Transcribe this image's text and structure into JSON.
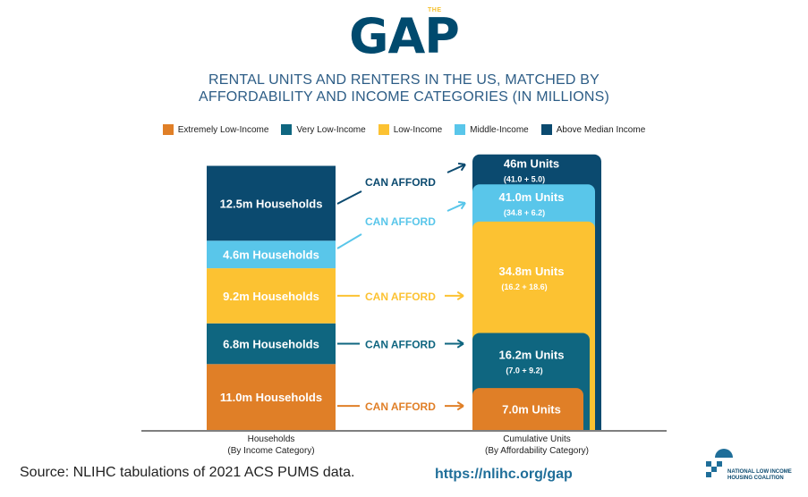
{
  "logo": {
    "main": "GAP",
    "small": "THE"
  },
  "title_lines": [
    "RENTAL UNITS AND RENTERS IN THE US, MATCHED BY",
    "AFFORDABILITY AND INCOME CATEGORIES (IN MILLIONS)"
  ],
  "legend": [
    {
      "label": "Extremely Low-Income",
      "color": "#e07f27"
    },
    {
      "label": "Very Low-Income",
      "color": "#0f6680"
    },
    {
      "label": "Low-Income",
      "color": "#fcc232"
    },
    {
      "label": "Middle-Income",
      "color": "#59c6ea"
    },
    {
      "label": "Above Median Income",
      "color": "#0b4a6f"
    }
  ],
  "chart_data": {
    "type": "bar",
    "categories": [
      "Households\n(By Income Category)",
      "Cumulative Units\n(By Affordability Category)"
    ],
    "households": [
      {
        "category": "Extremely Low-Income",
        "value": 11.0,
        "label": "11.0m Households",
        "color": "#e07f27"
      },
      {
        "category": "Very Low-Income",
        "value": 6.8,
        "label": "6.8m Households",
        "color": "#0f6680"
      },
      {
        "category": "Low-Income",
        "value": 9.2,
        "label": "9.2m Households",
        "color": "#fcc232"
      },
      {
        "category": "Middle-Income",
        "value": 4.6,
        "label": "4.6m Households",
        "color": "#59c6ea"
      },
      {
        "category": "Above Median Income",
        "value": 12.5,
        "label": "12.5m Households",
        "color": "#0b4a6f"
      }
    ],
    "cumulative_units": [
      {
        "category": "Extremely Low-Income",
        "value": 7.0,
        "label": "7.0m Units",
        "sublabel": "",
        "color": "#e07f27"
      },
      {
        "category": "Very Low-Income",
        "value": 16.2,
        "label": "16.2m Units",
        "sublabel": "(7.0 + 9.2)",
        "color": "#0f6680"
      },
      {
        "category": "Low-Income",
        "value": 34.8,
        "label": "34.8m Units",
        "sublabel": "(16.2 + 18.6)",
        "color": "#fcc232"
      },
      {
        "category": "Middle-Income",
        "value": 41.0,
        "label": "41.0m Units",
        "sublabel": "(34.8 + 6.2)",
        "color": "#59c6ea"
      },
      {
        "category": "Above Median Income",
        "value": 46.0,
        "label": "46m Units",
        "sublabel": "(41.0 + 5.0)",
        "color": "#0b4a6f"
      }
    ],
    "arrow_label": "CAN AFFORD",
    "x_labels": [
      {
        "line1": "Households",
        "line2": "(By Income Category)"
      },
      {
        "line1": "Cumulative Units",
        "line2": "(By Affordability Category)"
      }
    ]
  },
  "source": "Source: NLIHC tabulations of 2021 ACS PUMS data.",
  "url": "https://nlihc.org/gap",
  "org_logo": {
    "line1": "NATIONAL LOW INCOME",
    "line2": "HOUSING COALITION"
  }
}
